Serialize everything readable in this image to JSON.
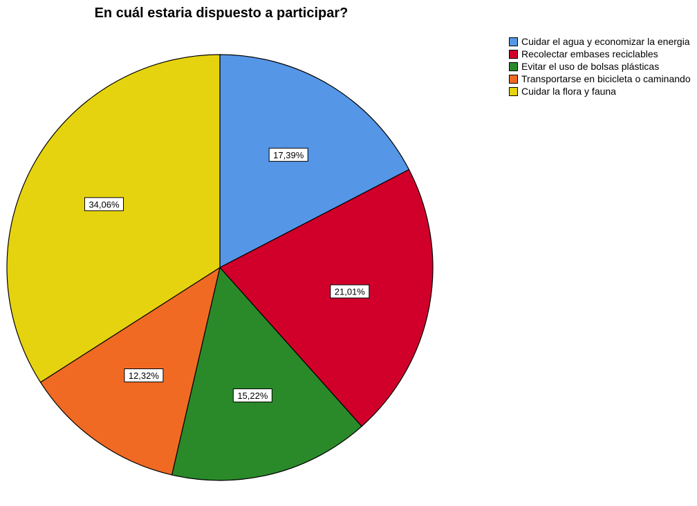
{
  "chart_data": {
    "type": "pie",
    "title": "En cuál estaria dispuesto a participar?",
    "slices": [
      {
        "name": "Cuidar el agua y economizar la energia",
        "value": 17.39,
        "label": "17,39%",
        "color": "#5596e6"
      },
      {
        "name": "Recolectar embases reciclables",
        "value": 21.01,
        "label": "21,01%",
        "color": "#d1002a"
      },
      {
        "name": "Evitar el uso de bolsas plásticas",
        "value": 15.22,
        "label": "15,22%",
        "color": "#2a8a2a"
      },
      {
        "name": "Transportarse en bicicleta o caminando",
        "value": 12.32,
        "label": "12,32%",
        "color": "#f06a24"
      },
      {
        "name": "Cuidar la flora y fauna",
        "value": 34.06,
        "label": "34,06%",
        "color": "#e6d30f"
      }
    ],
    "legend_position": "right",
    "start": "top",
    "direction": "clockwise"
  }
}
